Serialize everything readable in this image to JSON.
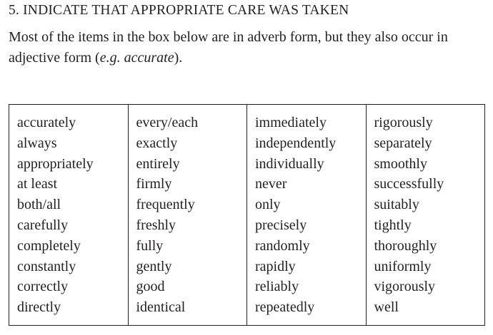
{
  "heading": "5.  INDICATE THAT APPROPRIATE CARE WAS TAKEN",
  "intro": {
    "text": "Most of the items in the box below are in adverb form, but they also occur in adjective form (",
    "example": "e.g. accurate",
    "close": ")."
  },
  "word_box": {
    "columns": [
      [
        "accurately",
        "always",
        "appropriately",
        "at least",
        "both/all",
        "carefully",
        "completely",
        "constantly",
        "correctly",
        "directly"
      ],
      [
        "every/each",
        "exactly",
        "entirely",
        "firmly",
        "frequently",
        "freshly",
        "fully",
        "gently",
        "good",
        "identical"
      ],
      [
        "immediately",
        "independently",
        "individually",
        "never",
        "only",
        "precisely",
        "randomly",
        "rapidly",
        "reliably",
        "repeatedly"
      ],
      [
        "rigorously",
        "separately",
        "smoothly",
        "successfully",
        "suitably",
        "tightly",
        "thoroughly",
        "uniformly",
        "vigorously",
        "well"
      ]
    ]
  }
}
